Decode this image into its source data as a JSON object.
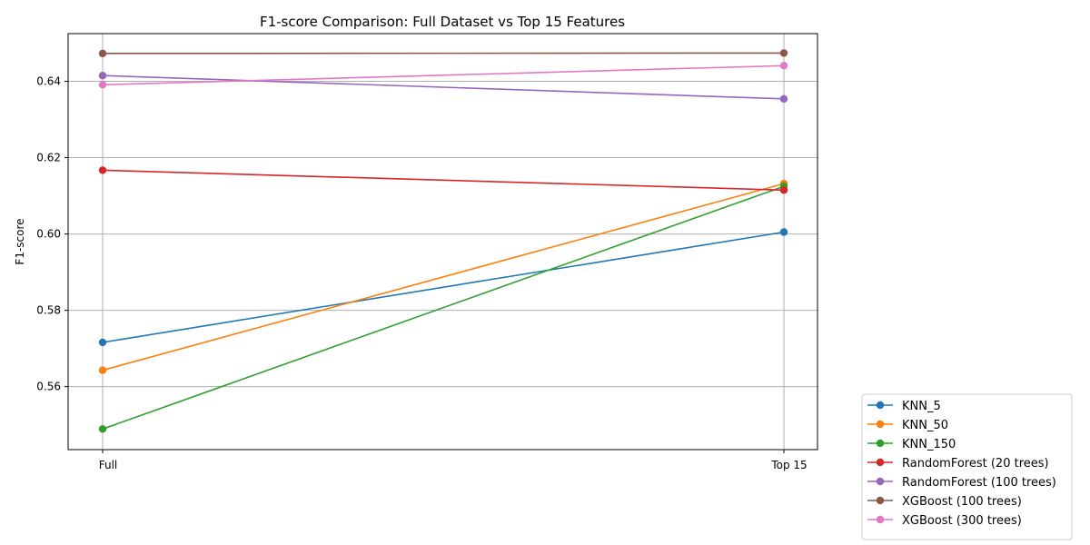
{
  "chart_data": {
    "type": "line",
    "title": "F1-score Comparison: Full Dataset vs Top 15 Features",
    "xlabel": "",
    "ylabel": "F1-score",
    "categories": [
      "Full",
      "Top 15"
    ],
    "ylim": [
      0.5435,
      0.6525
    ],
    "yticks": [
      0.56,
      0.58,
      0.6,
      0.62,
      0.64
    ],
    "ytick_labels": [
      "0.56",
      "0.58",
      "0.60",
      "0.62",
      "0.64"
    ],
    "grid": true,
    "legend_position": "outside-bottom-right",
    "series": [
      {
        "name": "KNN_5",
        "color": "#1f77b4",
        "values": [
          0.5716,
          0.6005
        ]
      },
      {
        "name": "KNN_50",
        "color": "#ff7f0e",
        "values": [
          0.5643,
          0.6132
        ]
      },
      {
        "name": "KNN_150",
        "color": "#2ca02c",
        "values": [
          0.5489,
          0.6125
        ]
      },
      {
        "name": "RandomForest (20 trees)",
        "color": "#d62728",
        "values": [
          0.6167,
          0.6115
        ]
      },
      {
        "name": "RandomForest (100 trees)",
        "color": "#9467bd",
        "values": [
          0.6415,
          0.6354
        ]
      },
      {
        "name": "XGBoost (100 trees)",
        "color": "#8c564b",
        "values": [
          0.6473,
          0.6474
        ]
      },
      {
        "name": "XGBoost (300 trees)",
        "color": "#e377c2",
        "values": [
          0.6391,
          0.6441
        ]
      }
    ]
  }
}
